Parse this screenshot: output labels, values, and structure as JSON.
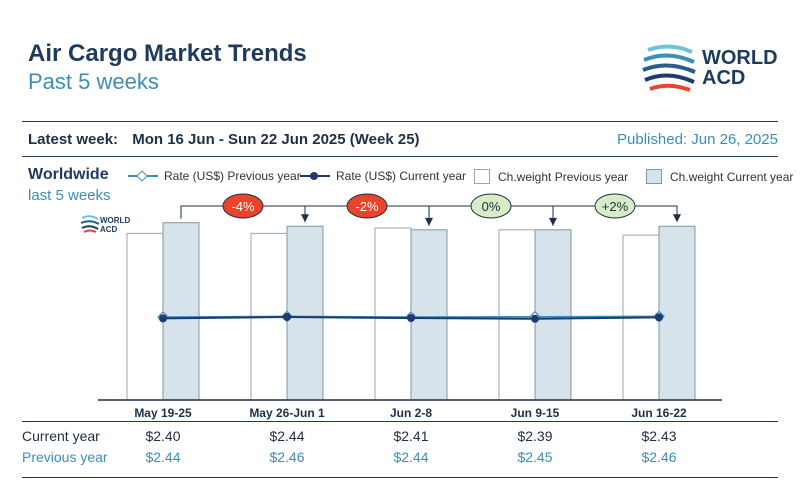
{
  "header": {
    "title": "Air Cargo Market Trends",
    "subtitle": "Past 5 weeks",
    "logo_line1": "WORLD",
    "logo_line2": "ACD",
    "latest_label": "Latest week:",
    "latest_value": "Mon 16 Jun - Sun 22 Jun 2025 (Week 25)",
    "published": "Published: Jun 26, 2025"
  },
  "panel": {
    "region": "Worldwide",
    "period": "last 5 weeks",
    "mini_logo_line1": "WORLD",
    "mini_logo_line2": "ACD"
  },
  "legend": {
    "rate_prev": "Rate (US$) Previous year",
    "rate_cur": "Rate (US$) Current year",
    "weight_prev": "Ch.weight Previous year",
    "weight_cur": "Ch.weight Current year"
  },
  "table": {
    "current_label": "Current year",
    "previous_label": "Previous year",
    "current": [
      "$2.40",
      "$2.44",
      "$2.41",
      "$2.39",
      "$2.43"
    ],
    "previous": [
      "$2.44",
      "$2.46",
      "$2.44",
      "$2.45",
      "$2.46"
    ]
  },
  "chart_data": {
    "type": "bar",
    "categories": [
      "May 19-25",
      "May 26-Jun 1",
      "Jun 2-8",
      "Jun 9-15",
      "Jun 16-22"
    ],
    "series": [
      {
        "name": "Ch.weight Previous year",
        "kind": "bar",
        "values": [
          94,
          94,
          97,
          96,
          93
        ]
      },
      {
        "name": "Ch.weight Current year",
        "kind": "bar",
        "values": [
          100,
          98,
          96,
          96,
          98
        ]
      },
      {
        "name": "Rate (US$) Previous year",
        "kind": "line",
        "values": [
          2.44,
          2.46,
          2.44,
          2.45,
          2.46
        ]
      },
      {
        "name": "Rate (US$) Current year",
        "kind": "line",
        "values": [
          2.4,
          2.44,
          2.41,
          2.39,
          2.43
        ]
      }
    ],
    "changes": [
      "-4%",
      "-2%",
      "0%",
      "+2%"
    ],
    "change_colors": [
      "#e8452c",
      "#e8452c",
      "#d8ecc8",
      "#d8ecc8"
    ],
    "colors": {
      "bar_prev_fill": "#ffffff",
      "bar_prev_stroke": "#9aa6b0",
      "bar_cur_fill": "#d6e3ea",
      "bar_cur_stroke": "#7f97a8",
      "line_cur": "#1f3b6e",
      "line_prev": "#3a8fb7",
      "accent": "#1f3b5c"
    },
    "weight_ylim": [
      0,
      110
    ],
    "rate_ylim": [
      0,
      5
    ]
  }
}
